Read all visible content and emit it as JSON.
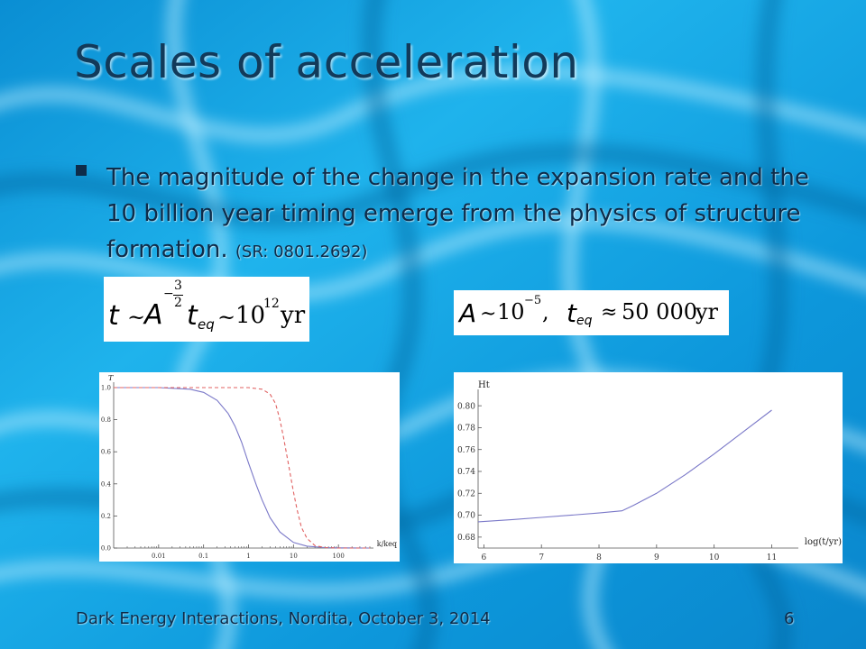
{
  "slide": {
    "title": "Scales of acceleration",
    "bullet": {
      "text": "The magnitude of the change in the expansion rate and the 10 billion year timing emerge from the physics of structure formation. ",
      "ref": "(SR: 0801.2692)"
    },
    "equation1": {
      "t": "t",
      "sim1": "~",
      "A": "A",
      "exp_num": "3",
      "exp_den": "2",
      "t_eq": "t",
      "eq_sub": "eq",
      "sim2": "~",
      "ten": "10",
      "ten_exp": "12",
      "unit": "yr"
    },
    "equation2": {
      "A": "A",
      "sim": "~",
      "ten": "10",
      "ten_exp": "−5",
      "comma": ",",
      "t_eq": "t",
      "eq_sub": "eq",
      "approx": "≈",
      "value": "50 000",
      "unit": "yr"
    },
    "footer": {
      "left": "Dark Energy Interactions, Nordita, October 3, 2014",
      "page": "6"
    },
    "colors": {
      "text": "#0e2c4a",
      "title": "#123a5a",
      "solid_curve": "#7a78c8",
      "dashed_curve": "#e06060"
    }
  },
  "chart_data": [
    {
      "type": "line",
      "xscale": "log",
      "ylabel": "T",
      "xlabel": "k/keq",
      "xlim": [
        0.001,
        500
      ],
      "ylim": [
        0,
        1.0
      ],
      "xticks": [
        "0.01",
        "0.1",
        "1",
        "10",
        "100"
      ],
      "yticks": [
        "0.0",
        "0.2",
        "0.4",
        "0.6",
        "0.8",
        "1.0"
      ],
      "series": [
        {
          "style": "solid",
          "x": [
            0.001,
            0.01,
            0.05,
            0.1,
            0.2,
            0.35,
            0.5,
            0.7,
            1,
            1.5,
            2,
            3,
            5,
            10,
            20,
            50,
            100,
            500
          ],
          "y": [
            1.0,
            1.0,
            0.99,
            0.97,
            0.92,
            0.84,
            0.76,
            0.66,
            0.53,
            0.39,
            0.3,
            0.19,
            0.1,
            0.035,
            0.012,
            0.003,
            0.001,
            0.0
          ]
        },
        {
          "style": "dashed",
          "x": [
            0.001,
            0.1,
            1,
            2,
            3,
            4,
            5,
            6,
            8,
            10,
            12,
            15,
            20,
            30,
            50,
            100,
            500
          ],
          "y": [
            1.0,
            1.0,
            1.0,
            0.99,
            0.96,
            0.9,
            0.8,
            0.69,
            0.5,
            0.35,
            0.24,
            0.13,
            0.06,
            0.015,
            0.003,
            0.0,
            0.0
          ]
        }
      ]
    },
    {
      "type": "line",
      "ylabel": "Ht",
      "xlabel": "log(t/yr)",
      "xlim": [
        5.9,
        11.4
      ],
      "ylim": [
        0.67,
        0.81
      ],
      "xticks": [
        "6",
        "7",
        "8",
        "9",
        "10",
        "11"
      ],
      "yticks": [
        "0.68",
        "0.70",
        "0.72",
        "0.74",
        "0.76",
        "0.78",
        "0.80"
      ],
      "series": [
        {
          "style": "solid",
          "x": [
            5.9,
            6.5,
            7,
            7.5,
            8,
            8.4,
            8.6,
            9,
            9.5,
            10,
            10.5,
            11
          ],
          "y": [
            0.694,
            0.696,
            0.698,
            0.7,
            0.702,
            0.704,
            0.709,
            0.72,
            0.737,
            0.756,
            0.776,
            0.796
          ]
        }
      ]
    }
  ]
}
